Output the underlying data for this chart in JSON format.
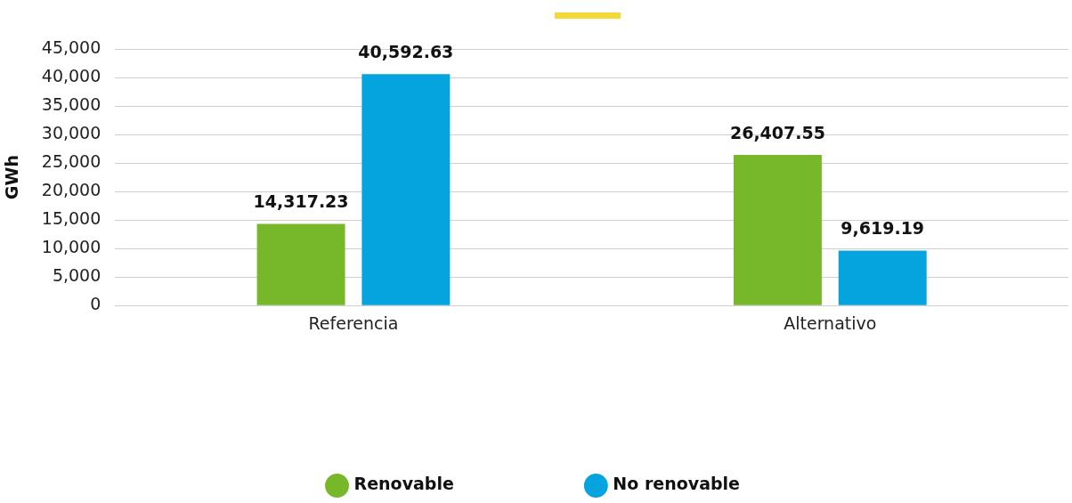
{
  "chart_data": {
    "type": "bar",
    "ylabel": "GWh",
    "categories": [
      "Referencia",
      "Alternativo"
    ],
    "series": [
      {
        "name": "Renovable",
        "color": "#76b82a",
        "values": [
          14317.23,
          26407.55
        ],
        "value_labels": [
          "14,317.23",
          "26,407.55"
        ]
      },
      {
        "name": "No renovable",
        "color": "#05a4df",
        "values": [
          40592.63,
          9619.19
        ],
        "value_labels": [
          "40,592.63",
          "9,619.19"
        ]
      }
    ],
    "ylim": [
      0,
      45000
    ],
    "yticks": [
      {
        "value": 0,
        "label": "0"
      },
      {
        "value": 5000,
        "label": "5,000"
      },
      {
        "value": 10000,
        "label": "10,000"
      },
      {
        "value": 15000,
        "label": "15,000"
      },
      {
        "value": 20000,
        "label": "20,000"
      },
      {
        "value": 25000,
        "label": "25,000"
      },
      {
        "value": 30000,
        "label": "30,000"
      },
      {
        "value": 35000,
        "label": "35,000"
      },
      {
        "value": 40000,
        "label": "40,000"
      },
      {
        "value": 45000,
        "label": "45,000"
      }
    ],
    "grid": "y",
    "legend": "bottom"
  }
}
